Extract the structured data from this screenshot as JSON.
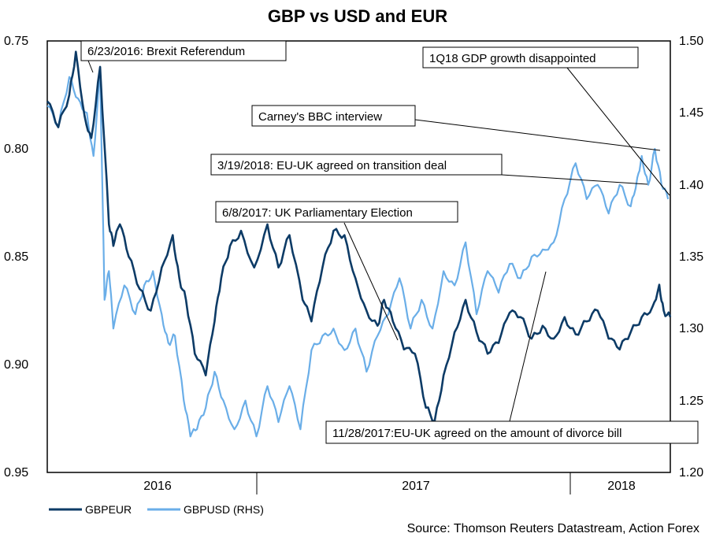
{
  "chart_data": {
    "type": "line",
    "title": "GBP vs USD and EUR",
    "source": "Source: Thomson Reuters Datastream, Action Forex",
    "x_labels": [
      "2016",
      "2017",
      "2018"
    ],
    "x_range": [
      2015.5,
      2018.33
    ],
    "y_left": {
      "ticks": [
        "0.75",
        "0.80",
        "0.85",
        "0.90",
        "0.95"
      ],
      "range": [
        0.75,
        0.95
      ],
      "inverted": true
    },
    "y_right": {
      "ticks": [
        "1.50",
        "1.45",
        "1.40",
        "1.35",
        "1.30",
        "1.25",
        "1.20"
      ],
      "range": [
        1.2,
        1.5
      ]
    },
    "series": [
      {
        "name": "GBPEUR",
        "axis": "left",
        "color": "#0d3b66",
        "x": [
          2015.5,
          2015.55,
          2015.6,
          2015.63,
          2015.67,
          2015.7,
          2015.74,
          2015.78,
          2015.8,
          2015.83,
          2015.87,
          2015.92,
          2015.97,
          2016.02,
          2016.07,
          2016.1,
          2016.13,
          2016.17,
          2016.22,
          2016.26,
          2016.29,
          2016.33,
          2016.38,
          2016.44,
          2016.5,
          2016.55,
          2016.6,
          2016.66,
          2016.7,
          2016.75,
          2016.8,
          2016.85,
          2016.9,
          2016.95,
          2017.0,
          2017.03,
          2017.07,
          2017.12,
          2017.17,
          2017.22,
          2017.26,
          2017.3,
          2017.35,
          2017.4,
          2017.45,
          2017.5,
          2017.55,
          2017.6,
          2017.65,
          2017.7,
          2017.75,
          2017.8,
          2017.85,
          2017.9,
          2017.95,
          2018.0,
          2018.05,
          2018.1,
          2018.15,
          2018.2,
          2018.25,
          2018.28,
          2018.3,
          2018.33
        ],
        "values": [
          0.778,
          0.79,
          0.775,
          0.755,
          0.785,
          0.795,
          0.762,
          0.835,
          0.845,
          0.835,
          0.85,
          0.865,
          0.875,
          0.855,
          0.84,
          0.86,
          0.87,
          0.895,
          0.905,
          0.88,
          0.86,
          0.845,
          0.838,
          0.855,
          0.835,
          0.855,
          0.84,
          0.87,
          0.88,
          0.855,
          0.838,
          0.84,
          0.86,
          0.875,
          0.882,
          0.87,
          0.88,
          0.893,
          0.895,
          0.92,
          0.926,
          0.905,
          0.885,
          0.87,
          0.885,
          0.895,
          0.89,
          0.876,
          0.878,
          0.888,
          0.882,
          0.888,
          0.878,
          0.886,
          0.88,
          0.875,
          0.888,
          0.893,
          0.885,
          0.878,
          0.873,
          0.863,
          0.875,
          0.878
        ]
      },
      {
        "name": "GBPUSD (RHS)",
        "axis": "right",
        "color": "#6aaee8",
        "x": [
          2015.5,
          2015.55,
          2015.6,
          2015.64,
          2015.68,
          2015.71,
          2015.74,
          2015.76,
          2015.78,
          2015.8,
          2015.85,
          2015.9,
          2015.94,
          2015.98,
          2016.02,
          2016.05,
          2016.08,
          2016.12,
          2016.15,
          2016.18,
          2016.22,
          2016.26,
          2016.3,
          2016.35,
          2016.4,
          2016.45,
          2016.5,
          2016.55,
          2016.6,
          2016.65,
          2016.7,
          2016.75,
          2016.8,
          2016.85,
          2016.9,
          2016.95,
          2017.0,
          2017.05,
          2017.1,
          2017.15,
          2017.2,
          2017.25,
          2017.3,
          2017.35,
          2017.4,
          2017.45,
          2017.5,
          2017.55,
          2017.6,
          2017.65,
          2017.7,
          2017.75,
          2017.8,
          2017.85,
          2017.9,
          2017.95,
          2018.0,
          2018.05,
          2018.1,
          2018.15,
          2018.18,
          2018.2,
          2018.23,
          2018.26,
          2018.29,
          2018.32
        ],
        "values": [
          1.455,
          1.44,
          1.475,
          1.46,
          1.45,
          1.42,
          1.48,
          1.32,
          1.34,
          1.3,
          1.33,
          1.31,
          1.33,
          1.34,
          1.31,
          1.29,
          1.295,
          1.25,
          1.225,
          1.23,
          1.245,
          1.27,
          1.25,
          1.23,
          1.25,
          1.225,
          1.26,
          1.235,
          1.26,
          1.23,
          1.285,
          1.295,
          1.3,
          1.285,
          1.3,
          1.27,
          1.295,
          1.31,
          1.335,
          1.3,
          1.32,
          1.3,
          1.34,
          1.33,
          1.36,
          1.31,
          1.34,
          1.325,
          1.345,
          1.335,
          1.35,
          1.355,
          1.36,
          1.39,
          1.415,
          1.39,
          1.4,
          1.38,
          1.4,
          1.385,
          1.405,
          1.42,
          1.4,
          1.425,
          1.4,
          1.39
        ]
      }
    ],
    "annotations": [
      {
        "text": "6/23/2016: Brexit Referendum"
      },
      {
        "text": "1Q18 GDP growth disappointed"
      },
      {
        "text": "Carney's BBC interview"
      },
      {
        "text": "3/19/2018: EU-UK agreed on transition deal"
      },
      {
        "text": "6/8/2017: UK Parliamentary Election"
      },
      {
        "text": "11/28/2017:EU-UK agreed on the amount of divorce bill"
      }
    ]
  }
}
